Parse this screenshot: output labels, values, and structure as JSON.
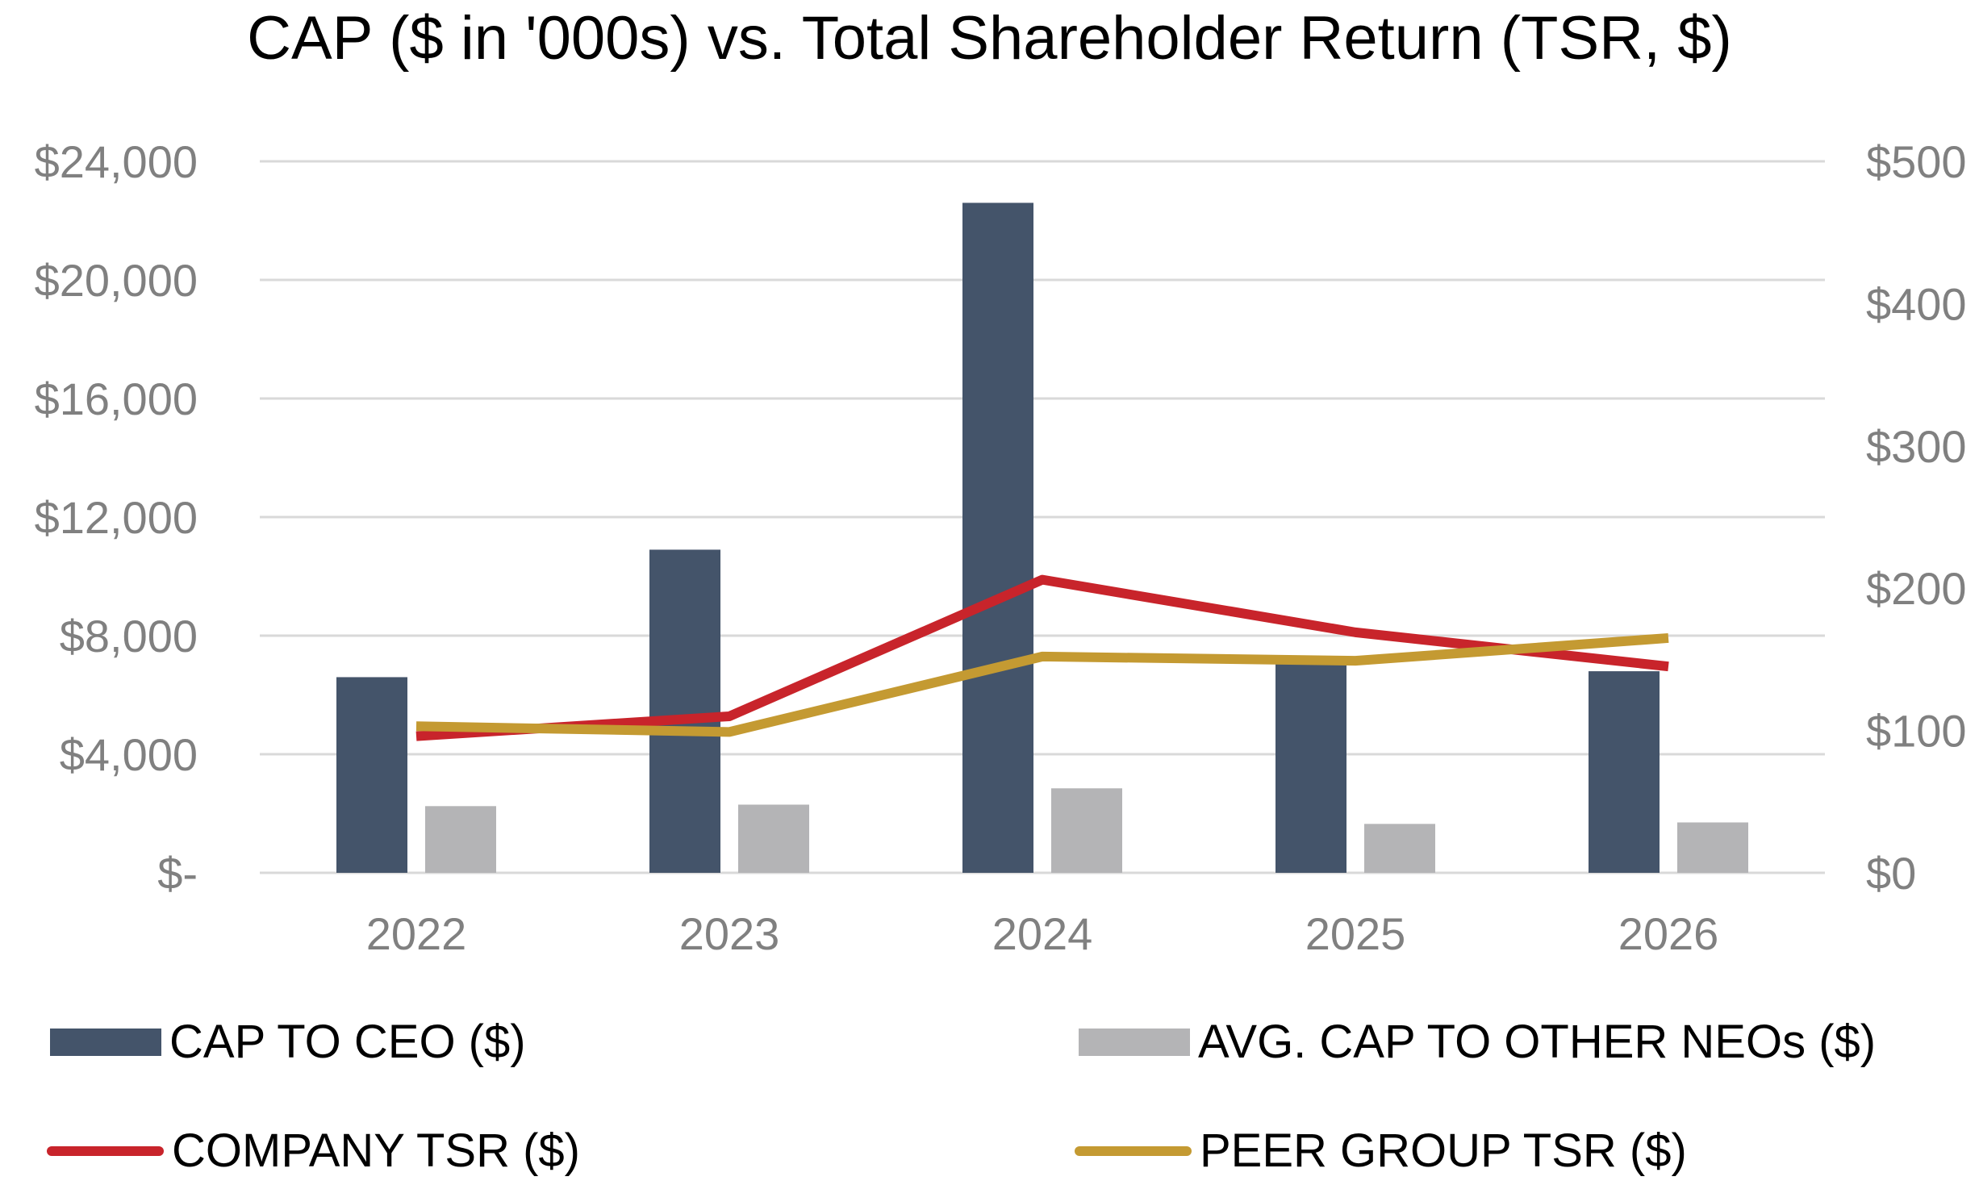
{
  "chart_data": {
    "type": "bar",
    "title": "CAP ($ in '000s) vs. Total Shareholder Return (TSR, $)",
    "categories": [
      "2022",
      "2023",
      "2024",
      "2025",
      "2026"
    ],
    "y_left": {
      "ticks": [
        0,
        4000,
        8000,
        12000,
        16000,
        20000,
        24000
      ],
      "tick_labels": [
        "$-",
        "$4,000",
        "$8,000",
        "$12,000",
        "$16,000",
        "$20,000",
        "$24,000"
      ],
      "ylim": [
        0,
        24000
      ]
    },
    "y_right": {
      "ticks": [
        0,
        100,
        200,
        300,
        400,
        500
      ],
      "tick_labels": [
        "$0",
        "$100",
        "$200",
        "$300",
        "$400",
        "$500"
      ],
      "ylim": [
        0,
        500
      ]
    },
    "grid": true,
    "legend_position": "bottom",
    "series": [
      {
        "name": "CAP TO CEO ($)",
        "kind": "bar",
        "axis": "left",
        "color": "#44546a",
        "values": [
          6600,
          10900,
          22600,
          7100,
          6800
        ]
      },
      {
        "name": "AVG. CAP TO OTHER NEOs ($)",
        "kind": "bar",
        "axis": "left",
        "color": "#b4b4b6",
        "values": [
          2250,
          2300,
          2850,
          1650,
          1700
        ]
      },
      {
        "name": "COMPANY TSR ($)",
        "kind": "line",
        "axis": "right",
        "color": "#c8242b",
        "values": [
          96,
          110,
          206,
          169,
          145
        ]
      },
      {
        "name": "PEER GROUP TSR ($)",
        "kind": "line",
        "axis": "right",
        "color": "#c49a32",
        "values": [
          103,
          99,
          152,
          149,
          165
        ]
      }
    ]
  }
}
